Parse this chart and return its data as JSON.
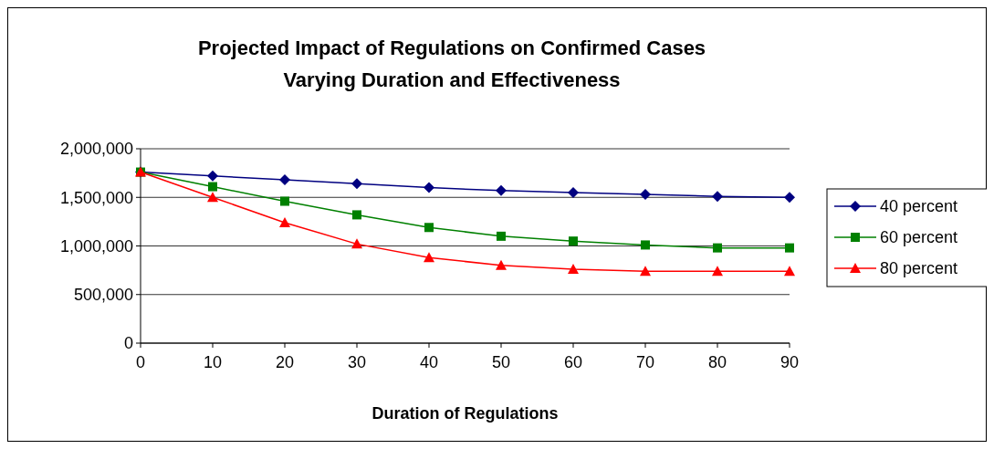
{
  "chart_data": {
    "type": "line",
    "title": "Projected Impact of Regulations on Confirmed Cases",
    "subtitle": "Varying Duration and Effectiveness",
    "xlabel": "Duration of Regulations",
    "x": [
      0,
      10,
      20,
      30,
      40,
      50,
      60,
      70,
      80,
      90
    ],
    "xlim": [
      0,
      90
    ],
    "xticks": [
      0,
      10,
      20,
      30,
      40,
      50,
      60,
      70,
      80,
      90
    ],
    "ylim": [
      0,
      2000000
    ],
    "yticks": [
      {
        "value": 0,
        "label": "0"
      },
      {
        "value": 500000,
        "label": "500,000"
      },
      {
        "value": 1000000,
        "label": "1,000,000"
      },
      {
        "value": 1500000,
        "label": "1,500,000"
      },
      {
        "value": 2000000,
        "label": "2,000,000"
      }
    ],
    "grid": "y",
    "legend": "right",
    "line_style": "solid",
    "series": [
      {
        "name": "40 percent",
        "color": "#000080",
        "marker": "diamond",
        "values": [
          1760000,
          1720000,
          1680000,
          1640000,
          1600000,
          1570000,
          1550000,
          1530000,
          1510000,
          1500000
        ]
      },
      {
        "name": "60 percent",
        "color": "#008000",
        "marker": "square",
        "values": [
          1760000,
          1610000,
          1460000,
          1320000,
          1190000,
          1100000,
          1050000,
          1010000,
          980000,
          980000
        ]
      },
      {
        "name": "80 percent",
        "color": "#ff0000",
        "marker": "triangle",
        "values": [
          1760000,
          1500000,
          1240000,
          1020000,
          880000,
          800000,
          760000,
          740000,
          740000,
          740000
        ]
      }
    ]
  }
}
